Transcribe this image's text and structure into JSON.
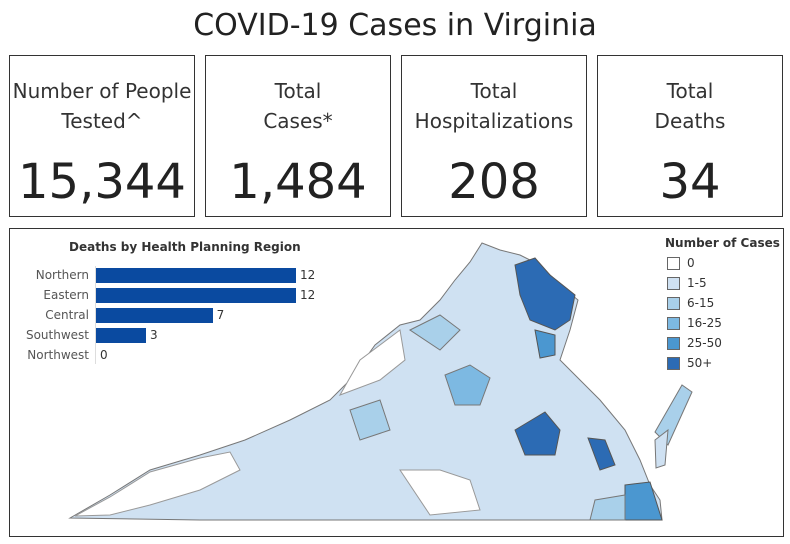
{
  "title": "COVID-19 Cases in Virginia",
  "cards": [
    {
      "label1": "Number of People",
      "label2": "Tested^",
      "value": "15,344"
    },
    {
      "label1": "Total",
      "label2": "Cases*",
      "value": "1,484"
    },
    {
      "label1": "Total",
      "label2": "Hospitalizations",
      "value": "208"
    },
    {
      "label1": "Total",
      "label2": "Deaths",
      "value": "34"
    }
  ],
  "legend": {
    "title": "Number of Cases",
    "items": [
      {
        "label": "0",
        "color": "#ffffff"
      },
      {
        "label": "1-5",
        "color": "#cfe1f2"
      },
      {
        "label": "6-15",
        "color": "#a9d0ea"
      },
      {
        "label": "16-25",
        "color": "#7db9e2"
      },
      {
        "label": "25-50",
        "color": "#4b97d0"
      },
      {
        "label": "50+",
        "color": "#2c6bb4"
      }
    ]
  },
  "chart_data": {
    "type": "bar",
    "orientation": "horizontal",
    "title": "Deaths by Health Planning Region",
    "categories": [
      "Northern",
      "Eastern",
      "Central",
      "Southwest",
      "Northwest"
    ],
    "values": [
      12,
      12,
      7,
      3,
      0
    ],
    "color": "#0a4aa0",
    "xlim": [
      0,
      12
    ]
  }
}
